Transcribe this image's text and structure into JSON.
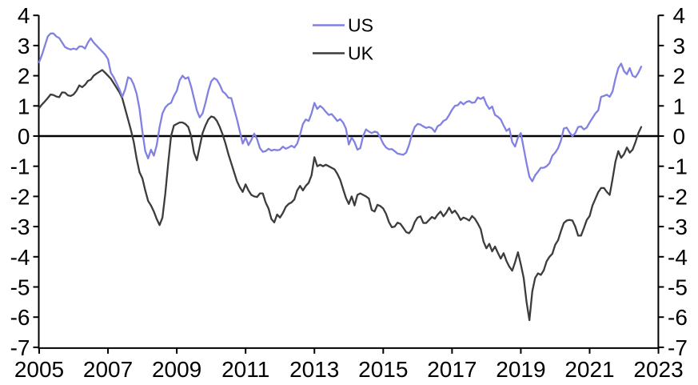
{
  "chart_data": {
    "type": "line",
    "title": "",
    "xlabel": "",
    "ylabel": "",
    "grid": false,
    "x_axis": {
      "tick_labels": [
        "2005",
        "2007",
        "2009",
        "2011",
        "2013",
        "2015",
        "2017",
        "2019",
        "2021",
        "2023"
      ],
      "tick_years": [
        2005,
        2007,
        2009,
        2011,
        2013,
        2015,
        2017,
        2019,
        2021,
        2023
      ],
      "range": [
        2005,
        2023
      ]
    },
    "y_axis": {
      "tick_labels": [
        "4",
        "3",
        "2",
        "1",
        "0",
        "-1",
        "-2",
        "-3",
        "-4",
        "-5",
        "-6",
        "-7"
      ],
      "tick_values": [
        4,
        3,
        2,
        1,
        0,
        -1,
        -2,
        -3,
        -4,
        -5,
        -6,
        -7
      ],
      "range": [
        -7,
        4
      ],
      "mirrored_on_right": true,
      "zero_line": true
    },
    "legend": {
      "position": "top-center",
      "entries": [
        {
          "label": "US",
          "color": "#8181E2"
        },
        {
          "label": "UK",
          "color": "#3C3C3C"
        }
      ]
    },
    "x_start_year": 2005.0,
    "x_step_years": 0.08333,
    "series": [
      {
        "name": "US",
        "color": "#8181E2",
        "values": [
          2.45,
          2.7,
          3.0,
          3.3,
          3.4,
          3.4,
          3.3,
          3.25,
          3.1,
          2.95,
          2.9,
          2.87,
          2.9,
          2.87,
          2.97,
          2.97,
          2.9,
          3.1,
          3.24,
          3.1,
          3.0,
          2.9,
          2.8,
          2.7,
          2.55,
          2.1,
          1.95,
          1.75,
          1.55,
          1.3,
          1.55,
          1.95,
          1.9,
          1.7,
          1.4,
          0.9,
          0.15,
          -0.5,
          -0.74,
          -0.45,
          -0.65,
          -0.3,
          0.3,
          0.75,
          0.95,
          1.05,
          1.1,
          1.33,
          1.5,
          1.85,
          2.0,
          1.9,
          1.95,
          1.64,
          1.25,
          0.85,
          0.62,
          0.75,
          1.1,
          1.5,
          1.81,
          1.92,
          1.86,
          1.7,
          1.48,
          1.4,
          1.27,
          1.26,
          0.9,
          0.55,
          0.15,
          -0.25,
          -0.05,
          -0.3,
          -0.13,
          0.08,
          -0.1,
          -0.4,
          -0.52,
          -0.5,
          -0.42,
          -0.48,
          -0.45,
          -0.47,
          -0.45,
          -0.35,
          -0.42,
          -0.38,
          -0.32,
          -0.38,
          -0.25,
          0.05,
          0.4,
          0.55,
          0.5,
          0.75,
          1.1,
          0.9,
          1.0,
          0.92,
          0.8,
          0.7,
          0.73,
          0.62,
          0.5,
          0.56,
          0.45,
          0.25,
          -0.28,
          -0.05,
          -0.2,
          -0.45,
          -0.4,
          0.0,
          0.22,
          0.15,
          0.1,
          0.15,
          0.12,
          -0.05,
          -0.25,
          -0.38,
          -0.44,
          -0.43,
          -0.5,
          -0.58,
          -0.6,
          -0.62,
          -0.55,
          -0.3,
          0.05,
          0.3,
          0.4,
          0.38,
          0.32,
          0.27,
          0.3,
          0.26,
          0.14,
          0.33,
          0.38,
          0.5,
          0.55,
          0.7,
          0.87,
          1.0,
          1.02,
          1.13,
          1.05,
          1.13,
          1.16,
          1.1,
          1.12,
          1.28,
          1.23,
          1.29,
          1.05,
          0.9,
          0.98,
          0.7,
          0.64,
          0.55,
          0.35,
          0.17,
          0.25,
          -0.2,
          -0.35,
          -0.05,
          0.1,
          -0.4,
          -0.9,
          -1.35,
          -1.5,
          -1.3,
          -1.18,
          -1.05,
          -1.05,
          -1.0,
          -0.9,
          -0.65,
          -0.55,
          -0.4,
          -0.15,
          0.25,
          0.28,
          0.12,
          0.0,
          0.1,
          0.3,
          0.32,
          0.22,
          0.28,
          0.45,
          0.6,
          0.75,
          0.85,
          1.3,
          1.33,
          1.37,
          1.3,
          1.48,
          1.9,
          2.25,
          2.4,
          2.15,
          2.05,
          2.25,
          2.0,
          1.95,
          2.1,
          2.3
        ]
      },
      {
        "name": "UK",
        "color": "#3C3C3C",
        "values": [
          0.93,
          1.05,
          1.15,
          1.26,
          1.38,
          1.36,
          1.31,
          1.29,
          1.45,
          1.44,
          1.35,
          1.33,
          1.38,
          1.5,
          1.68,
          1.62,
          1.7,
          1.83,
          1.87,
          2.0,
          2.07,
          2.13,
          2.19,
          2.1,
          2.0,
          1.9,
          1.75,
          1.6,
          1.45,
          1.25,
          0.9,
          0.55,
          0.2,
          -0.2,
          -0.75,
          -1.2,
          -1.4,
          -1.8,
          -2.15,
          -2.3,
          -2.5,
          -2.75,
          -2.95,
          -2.7,
          -1.9,
          -0.9,
          0.0,
          0.35,
          0.4,
          0.45,
          0.45,
          0.4,
          0.3,
          0.0,
          -0.55,
          -0.8,
          -0.35,
          0.1,
          0.35,
          0.55,
          0.65,
          0.62,
          0.5,
          0.3,
          0.05,
          -0.25,
          -0.6,
          -0.9,
          -1.2,
          -1.5,
          -1.7,
          -1.85,
          -1.6,
          -1.8,
          -1.95,
          -2.0,
          -2.02,
          -1.9,
          -1.9,
          -2.2,
          -2.4,
          -2.75,
          -2.86,
          -2.6,
          -2.7,
          -2.55,
          -2.35,
          -2.25,
          -2.2,
          -2.1,
          -1.8,
          -1.65,
          -1.8,
          -1.65,
          -1.55,
          -1.3,
          -0.7,
          -1.0,
          -0.95,
          -1.0,
          -0.95,
          -1.0,
          -1.05,
          -1.1,
          -1.25,
          -1.45,
          -1.75,
          -2.05,
          -2.25,
          -2.0,
          -2.3,
          -1.95,
          -1.9,
          -1.95,
          -2.0,
          -2.07,
          -2.45,
          -2.5,
          -2.28,
          -2.32,
          -2.4,
          -2.58,
          -2.85,
          -3.02,
          -3.0,
          -2.87,
          -2.91,
          -3.04,
          -3.18,
          -3.22,
          -3.1,
          -2.85,
          -2.7,
          -2.66,
          -2.88,
          -2.88,
          -2.78,
          -2.68,
          -2.74,
          -2.6,
          -2.5,
          -2.66,
          -2.54,
          -2.37,
          -2.55,
          -2.47,
          -2.6,
          -2.78,
          -2.7,
          -2.74,
          -2.8,
          -2.65,
          -2.74,
          -2.9,
          -3.08,
          -3.5,
          -3.72,
          -3.57,
          -3.82,
          -3.66,
          -3.87,
          -4.06,
          -3.88,
          -4.14,
          -4.33,
          -4.46,
          -4.18,
          -3.85,
          -4.25,
          -4.7,
          -5.5,
          -6.1,
          -5.15,
          -4.7,
          -4.55,
          -4.6,
          -4.45,
          -4.15,
          -4.0,
          -3.9,
          -3.6,
          -3.45,
          -3.15,
          -2.88,
          -2.8,
          -2.78,
          -2.8,
          -3.0,
          -3.3,
          -3.3,
          -3.05,
          -2.78,
          -2.65,
          -2.3,
          -2.08,
          -1.86,
          -1.72,
          -1.72,
          -1.85,
          -1.95,
          -1.42,
          -0.85,
          -0.5,
          -0.72,
          -0.6,
          -0.38,
          -0.55,
          -0.45,
          -0.2,
          0.1,
          0.3
        ]
      }
    ]
  },
  "colors": {
    "background": "#FFFFFF",
    "axis": "#000000",
    "us_line": "#8181E2",
    "uk_line": "#3C3C3C"
  }
}
